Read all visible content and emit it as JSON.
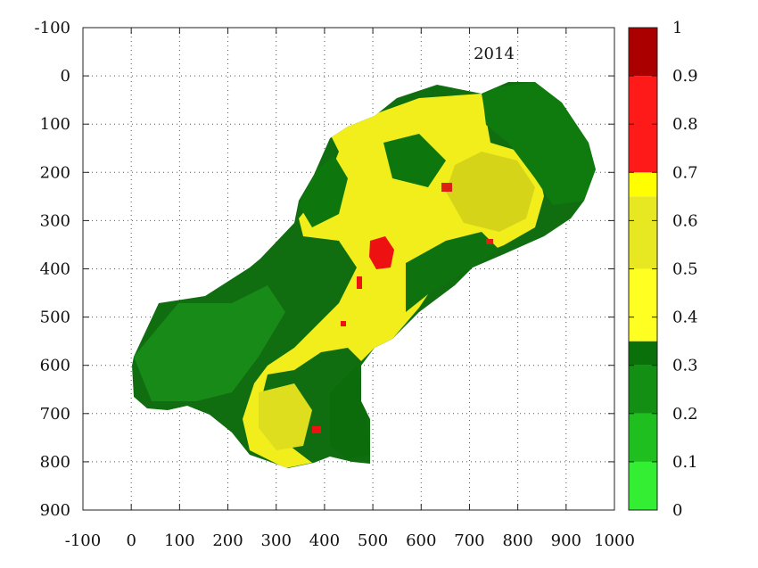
{
  "chart_data": {
    "type": "heatmap",
    "title": "2014",
    "xlabel": "",
    "ylabel": "",
    "xlim": [
      -100,
      1000
    ],
    "ylim": [
      900,
      -100
    ],
    "x_ticks": [
      "-100",
      "0",
      "100",
      "200",
      "300",
      "400",
      "500",
      "600",
      "700",
      "800",
      "900",
      "1000"
    ],
    "y_ticks": [
      "-100",
      "0",
      "100",
      "200",
      "300",
      "400",
      "500",
      "600",
      "700",
      "800",
      "900"
    ],
    "grid": true,
    "colorbar": {
      "range": [
        0,
        1
      ],
      "ticks": [
        "0",
        "0.1",
        "0.2",
        "0.3",
        "0.4",
        "0.5",
        "0.6",
        "0.7",
        "0.8",
        "0.9",
        "1"
      ],
      "bands": [
        {
          "from": 0.0,
          "to": 0.1,
          "color": "#33ee33"
        },
        {
          "from": 0.1,
          "to": 0.2,
          "color": "#1fbf1f"
        },
        {
          "from": 0.2,
          "to": 0.3,
          "color": "#138f13"
        },
        {
          "from": 0.3,
          "to": 0.35,
          "color": "#0a700a"
        },
        {
          "from": 0.35,
          "to": 0.5,
          "color": "#ffff22"
        },
        {
          "from": 0.5,
          "to": 0.65,
          "color": "#e8e822"
        },
        {
          "from": 0.65,
          "to": 0.7,
          "color": "#ffff00"
        },
        {
          "from": 0.7,
          "to": 0.9,
          "color": "#ff1a1a"
        },
        {
          "from": 0.9,
          "to": 1.0,
          "color": "#aa0000"
        }
      ]
    }
  }
}
